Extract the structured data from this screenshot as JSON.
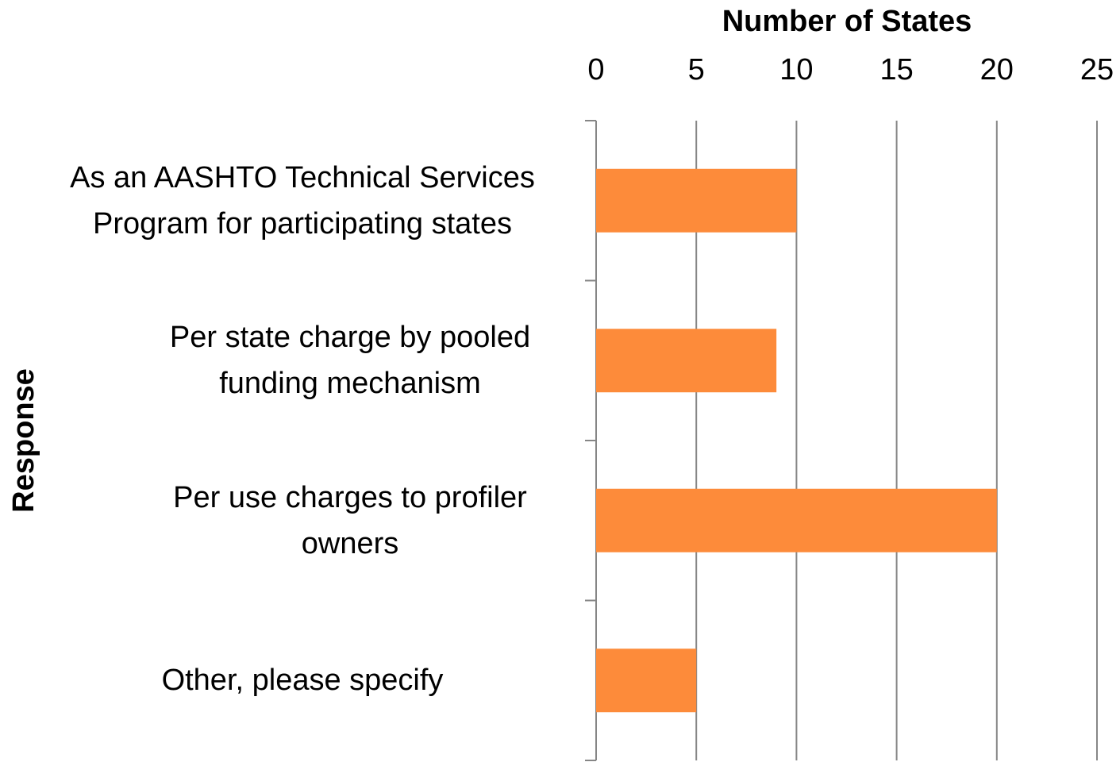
{
  "chart_data": {
    "type": "bar",
    "orientation": "horizontal",
    "x_label": "Number of States",
    "y_label": "Response",
    "categories": [
      "As an AASHTO Technical Services Program for participating states",
      "Per state charge by pooled funding mechanism",
      "Per use charges to profiler owners",
      "Other, please specify"
    ],
    "values": [
      10,
      9,
      20,
      5
    ],
    "color": "#fd8b3a",
    "xlim": [
      0,
      25
    ],
    "xticks": [
      0,
      5,
      10,
      15,
      20,
      25
    ],
    "grid": true
  }
}
